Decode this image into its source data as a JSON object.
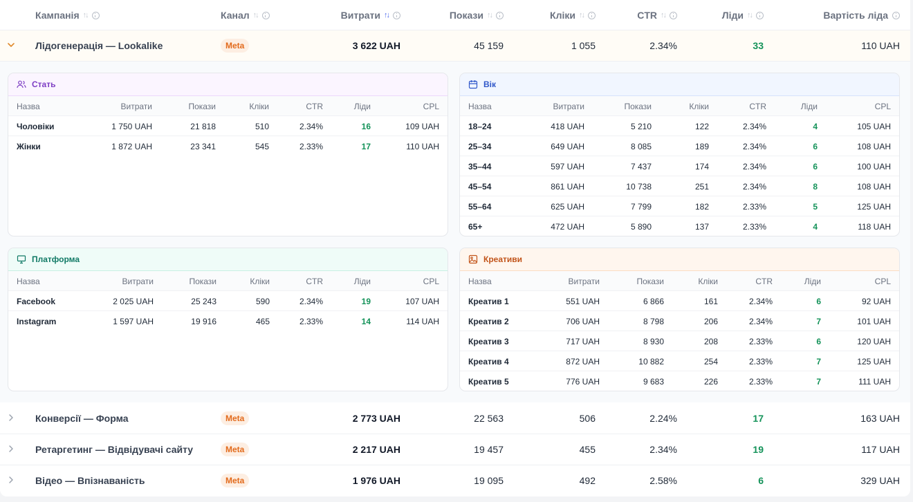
{
  "header": {
    "campaign": "Кампанія",
    "channel": "Канал",
    "spend": "Витрати",
    "impressions": "Покази",
    "clicks": "Кліки",
    "ctr": "CTR",
    "leads": "Ліди",
    "cpl": "Вартість ліда"
  },
  "campaigns": [
    {
      "name": "Лідогенерація — Lookalike",
      "channel": "Meta",
      "spend": "3 622 UAH",
      "impressions": "45 159",
      "clicks": "1 055",
      "ctr": "2.34%",
      "leads": "33",
      "cpl": "110 UAH",
      "expanded": true
    },
    {
      "name": "Конверсії — Форма",
      "channel": "Meta",
      "spend": "2 773 UAH",
      "impressions": "22 563",
      "clicks": "506",
      "ctr": "2.24%",
      "leads": "17",
      "cpl": "163 UAH",
      "expanded": false
    },
    {
      "name": "Ретаргетинг — Відвідувачі сайту",
      "channel": "Meta",
      "spend": "2 217 UAH",
      "impressions": "19 457",
      "clicks": "455",
      "ctr": "2.34%",
      "leads": "19",
      "cpl": "117 UAH",
      "expanded": false
    },
    {
      "name": "Відео — Впізнаваність",
      "channel": "Meta",
      "spend": "1 976 UAH",
      "impressions": "19 095",
      "clicks": "492",
      "ctr": "2.58%",
      "leads": "6",
      "cpl": "329 UAH",
      "expanded": false
    }
  ],
  "breakdown_columns": {
    "name": "Назва",
    "spend": "Витрати",
    "impressions": "Покази",
    "clicks": "Кліки",
    "ctr": "CTR",
    "leads": "Ліди",
    "cpl": "CPL"
  },
  "panels": {
    "gender": {
      "title": "Стать",
      "rows": [
        {
          "name": "Чоловіки",
          "spend": "1 750 UAH",
          "impressions": "21 818",
          "clicks": "510",
          "ctr": "2.34%",
          "leads": "16",
          "cpl": "109 UAH"
        },
        {
          "name": "Жінки",
          "spend": "1 872 UAH",
          "impressions": "23 341",
          "clicks": "545",
          "ctr": "2.33%",
          "leads": "17",
          "cpl": "110 UAH"
        }
      ]
    },
    "age": {
      "title": "Вік",
      "rows": [
        {
          "name": "18–24",
          "spend": "418 UAH",
          "impressions": "5 210",
          "clicks": "122",
          "ctr": "2.34%",
          "leads": "4",
          "cpl": "105 UAH"
        },
        {
          "name": "25–34",
          "spend": "649 UAH",
          "impressions": "8 085",
          "clicks": "189",
          "ctr": "2.34%",
          "leads": "6",
          "cpl": "108 UAH"
        },
        {
          "name": "35–44",
          "spend": "597 UAH",
          "impressions": "7 437",
          "clicks": "174",
          "ctr": "2.34%",
          "leads": "6",
          "cpl": "100 UAH"
        },
        {
          "name": "45–54",
          "spend": "861 UAH",
          "impressions": "10 738",
          "clicks": "251",
          "ctr": "2.34%",
          "leads": "8",
          "cpl": "108 UAH"
        },
        {
          "name": "55–64",
          "spend": "625 UAH",
          "impressions": "7 799",
          "clicks": "182",
          "ctr": "2.33%",
          "leads": "5",
          "cpl": "125 UAH"
        },
        {
          "name": "65+",
          "spend": "472 UAH",
          "impressions": "5 890",
          "clicks": "137",
          "ctr": "2.33%",
          "leads": "4",
          "cpl": "118 UAH"
        }
      ]
    },
    "platform": {
      "title": "Платформа",
      "rows": [
        {
          "name": "Facebook",
          "spend": "2 025 UAH",
          "impressions": "25 243",
          "clicks": "590",
          "ctr": "2.34%",
          "leads": "19",
          "cpl": "107 UAH"
        },
        {
          "name": "Instagram",
          "spend": "1 597 UAH",
          "impressions": "19 916",
          "clicks": "465",
          "ctr": "2.33%",
          "leads": "14",
          "cpl": "114 UAH"
        }
      ]
    },
    "creatives": {
      "title": "Креативи",
      "rows": [
        {
          "name": "Креатив 1",
          "spend": "551 UAH",
          "impressions": "6 866",
          "clicks": "161",
          "ctr": "2.34%",
          "leads": "6",
          "cpl": "92 UAH"
        },
        {
          "name": "Креатив 2",
          "spend": "706 UAH",
          "impressions": "8 798",
          "clicks": "206",
          "ctr": "2.34%",
          "leads": "7",
          "cpl": "101 UAH"
        },
        {
          "name": "Креатив 3",
          "spend": "717 UAH",
          "impressions": "8 930",
          "clicks": "208",
          "ctr": "2.33%",
          "leads": "6",
          "cpl": "120 UAH"
        },
        {
          "name": "Креатив 4",
          "spend": "872 UAH",
          "impressions": "10 882",
          "clicks": "254",
          "ctr": "2.33%",
          "leads": "7",
          "cpl": "125 UAH"
        },
        {
          "name": "Креатив 5",
          "spend": "776 UAH",
          "impressions": "9 683",
          "clicks": "226",
          "ctr": "2.33%",
          "leads": "7",
          "cpl": "111 UAH"
        }
      ]
    }
  },
  "icons": {
    "gender": "users-icon",
    "age": "calendar-icon",
    "platform": "monitor-icon",
    "creatives": "image-icon",
    "expand": "chevron-down-icon",
    "collapsed": "chevron-right-icon",
    "sort": "sort-icon",
    "info": "info-icon"
  },
  "colors": {
    "leads": "#15935a",
    "badge_bg": "#fdeee2",
    "badge_text": "#e26a1b",
    "sort_active": "#4f6bed"
  }
}
